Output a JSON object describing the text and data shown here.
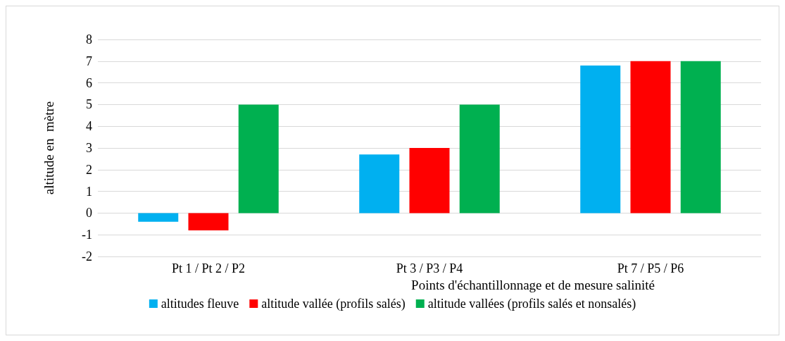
{
  "chart_data": {
    "type": "bar",
    "xlabel": "Points d'échantillonnage et de mesure salinité",
    "ylabel": "altitude en  mètre",
    "categories": [
      "Pt 1 / Pt 2 / P2",
      "Pt 3 / P3 / P4",
      "Pt 7 / P5 / P6"
    ],
    "series": [
      {
        "name": "altitudes fleuve",
        "color": "#00b0f0",
        "values": [
          -0.4,
          2.7,
          6.8
        ]
      },
      {
        "name": "altitude vallée (profils salés)",
        "color": "#ff0000",
        "values": [
          -0.8,
          3,
          7
        ]
      },
      {
        "name": "altitude vallées (profils salés et nonsalés)",
        "color": "#00b050",
        "values": [
          5,
          5,
          7
        ]
      }
    ],
    "ylim": [
      -2,
      8
    ],
    "yticks": [
      -2,
      -1,
      0,
      1,
      2,
      3,
      4,
      5,
      6,
      7,
      8
    ],
    "grid": "y",
    "legend": "bottom"
  }
}
